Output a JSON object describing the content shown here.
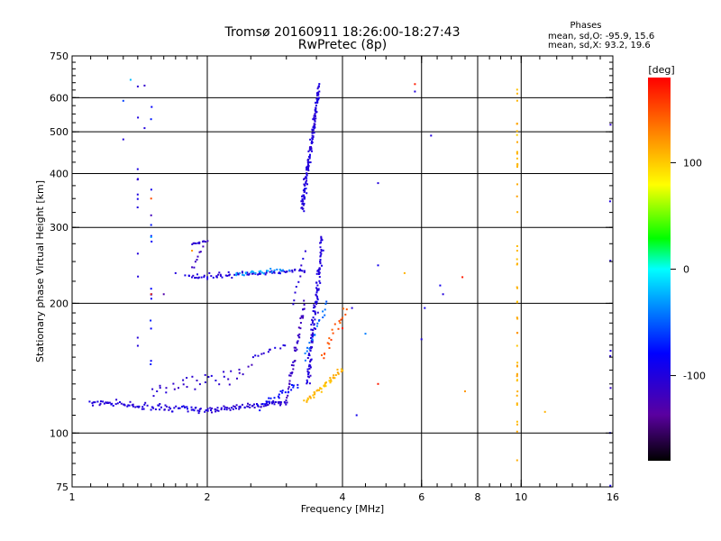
{
  "chart_data": {
    "type": "scatter",
    "title": "Tromsø 20160911 18:26:00-18:27:43",
    "subtitle": "RwPretec (8p)",
    "xlabel": "Frequency [MHz]",
    "ylabel": "Stationary phase Virtual Height [km]",
    "x_scale": "log",
    "y_scale": "log",
    "xlim": [
      1,
      16
    ],
    "ylim": [
      75,
      750
    ],
    "x_ticks": [
      1,
      2,
      4,
      6,
      8,
      10,
      16
    ],
    "y_ticks": [
      75,
      100,
      200,
      300,
      400,
      500,
      600,
      750
    ],
    "grid": true,
    "legend": {
      "heading": "Phases",
      "lines": [
        "mean, sd,O: -95.9, 15.6",
        "mean, sd,X:  93.2, 19.6"
      ]
    },
    "colorbar": {
      "label": "[deg]",
      "range": [
        -180,
        180
      ],
      "ticks": [
        100,
        0,
        -100
      ]
    },
    "series": [
      {
        "traces": [
          {
            "x0": 1.1,
            "x1": 2.0,
            "y0": 118,
            "y1": 113,
            "n": 90,
            "sx": 0.02,
            "sy": 0.03,
            "ph": -100
          },
          {
            "x0": 2.0,
            "x1": 3.0,
            "y0": 113,
            "y1": 118,
            "n": 70,
            "sx": 0.015,
            "sy": 0.02,
            "ph": -105
          },
          {
            "x0": 2.6,
            "x1": 3.2,
            "y0": 115,
            "y1": 130,
            "n": 25,
            "sx": 0.02,
            "sy": 0.03,
            "ph": -80
          },
          {
            "x0": 3.0,
            "x1": 3.3,
            "y0": 120,
            "y1": 200,
            "n": 45,
            "sx": 0.01,
            "sy": 0.05,
            "ph": -115
          },
          {
            "x0": 3.1,
            "x1": 3.3,
            "y0": 200,
            "y1": 260,
            "n": 10,
            "sx": 0.01,
            "sy": 0.02,
            "ph": -100
          },
          {
            "x0": 3.35,
            "x1": 3.6,
            "y0": 130,
            "y1": 280,
            "n": 120,
            "sx": 0.015,
            "sy": 0.08,
            "ph": -100
          },
          {
            "x0": 3.25,
            "x1": 3.55,
            "y0": 330,
            "y1": 640,
            "n": 150,
            "sx": 0.012,
            "sy": 0.04,
            "ph": -100
          },
          {
            "x0": 3.3,
            "x1": 4.0,
            "y0": 118,
            "y1": 140,
            "n": 45,
            "sx": 0.015,
            "sy": 0.02,
            "ph": 110
          },
          {
            "x0": 3.6,
            "x1": 4.1,
            "y0": 150,
            "y1": 195,
            "n": 20,
            "sx": 0.02,
            "sy": 0.05,
            "ph": 150
          },
          {
            "x0": 1.8,
            "x1": 3.3,
            "y0": 230,
            "y1": 238,
            "n": 80,
            "sx": 0.02,
            "sy": 0.02,
            "ph": -100
          },
          {
            "x0": 2.3,
            "x1": 3.0,
            "y0": 233,
            "y1": 240,
            "n": 25,
            "sx": 0.02,
            "sy": 0.015,
            "ph": -30
          },
          {
            "x0": 1.85,
            "x1": 2.0,
            "y0": 275,
            "y1": 280,
            "n": 12,
            "sx": 0.01,
            "sy": 0.01,
            "ph": -110
          },
          {
            "x0": 1.85,
            "x1": 1.95,
            "y0": 240,
            "y1": 270,
            "n": 8,
            "sx": 0.01,
            "sy": 0.02,
            "ph": -120
          },
          {
            "x0": 1.5,
            "x1": 2.5,
            "y0": 125,
            "y1": 140,
            "n": 35,
            "sx": 0.03,
            "sy": 0.06,
            "ph": -110
          },
          {
            "x0": 2.5,
            "x1": 3.0,
            "y0": 150,
            "y1": 160,
            "n": 12,
            "sx": 0.02,
            "sy": 0.01,
            "ph": -100
          },
          {
            "x0": 3.3,
            "x1": 3.7,
            "y0": 150,
            "y1": 200,
            "n": 20,
            "sx": 0.01,
            "sy": 0.03,
            "ph": -45
          },
          {
            "x0": 9.8,
            "x1": 9.8,
            "y0": 80,
            "y1": 610,
            "n": 50,
            "sx": 0.003,
            "sy": 0.5,
            "ph": 110
          },
          {
            "x0": 15.8,
            "x1": 15.8,
            "y0": 100,
            "y1": 650,
            "n": 8,
            "sx": 0.004,
            "sy": 0.4,
            "ph": -100
          },
          {
            "x0": 1.4,
            "x1": 1.4,
            "y0": 100,
            "y1": 600,
            "n": 12,
            "sx": 0.004,
            "sy": 0.4,
            "ph": -100
          },
          {
            "x0": 1.5,
            "x1": 1.5,
            "y0": 100,
            "y1": 620,
            "n": 14,
            "sx": 0.004,
            "sy": 0.4,
            "ph": -80
          }
        ]
      }
    ],
    "scattered_points": [
      [
        1.3,
        480,
        -100
      ],
      [
        1.3,
        590,
        -60
      ],
      [
        1.35,
        660,
        -20
      ],
      [
        1.45,
        510,
        -100
      ],
      [
        1.45,
        640,
        -110
      ],
      [
        1.5,
        350,
        150
      ],
      [
        1.5,
        320,
        -120
      ],
      [
        1.5,
        285,
        -30
      ],
      [
        1.5,
        210,
        160
      ],
      [
        1.6,
        210,
        -130
      ],
      [
        1.7,
        235,
        -100
      ],
      [
        1.85,
        265,
        120
      ],
      [
        4.2,
        195,
        -100
      ],
      [
        4.8,
        380,
        -100
      ],
      [
        4.8,
        245,
        -90
      ],
      [
        4.5,
        170,
        -40
      ],
      [
        5.8,
        645,
        170
      ],
      [
        5.8,
        620,
        -100
      ],
      [
        6.1,
        195,
        -90
      ],
      [
        6.3,
        490,
        -100
      ],
      [
        6.7,
        210,
        -100
      ],
      [
        6.6,
        220,
        -90
      ],
      [
        7.4,
        230,
        170
      ],
      [
        7.5,
        125,
        120
      ],
      [
        6.0,
        165,
        -100
      ],
      [
        4.3,
        110,
        -90
      ],
      [
        4.0,
        175,
        170
      ],
      [
        11.3,
        112,
        110
      ],
      [
        5.5,
        235,
        110
      ],
      [
        4.8,
        130,
        170
      ]
    ]
  }
}
